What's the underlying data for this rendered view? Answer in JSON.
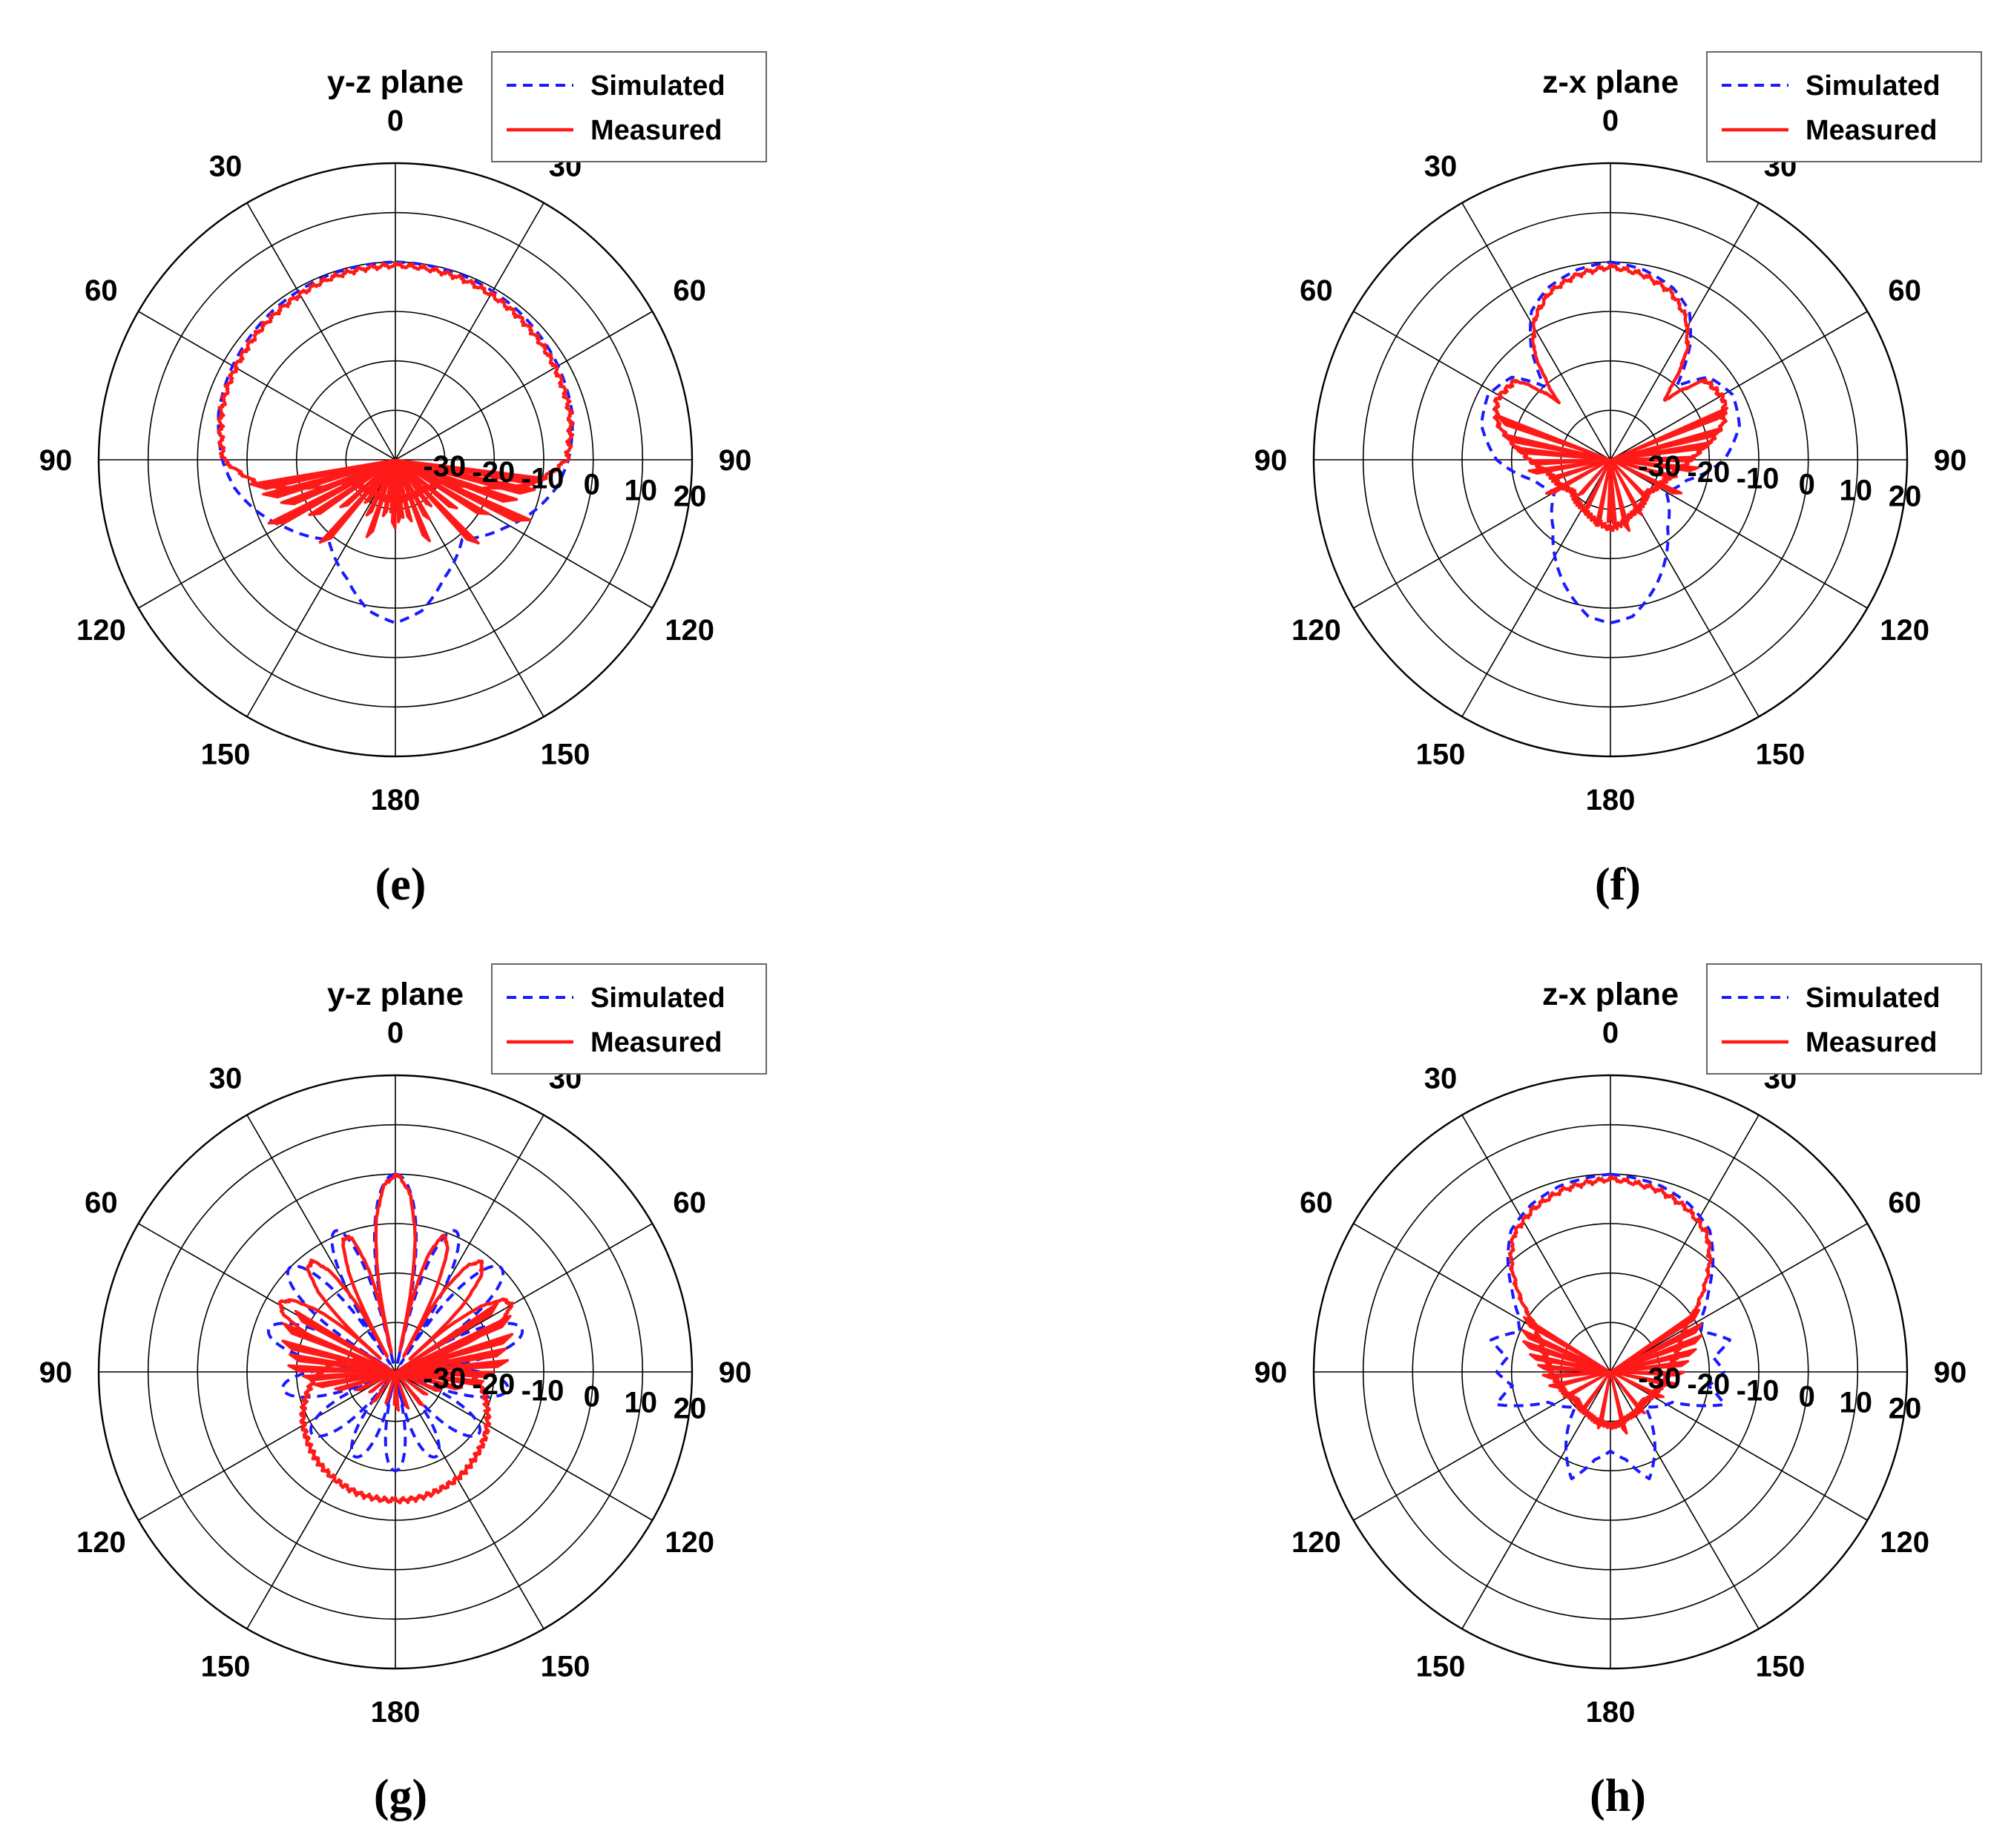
{
  "chart_data": [
    {
      "type": "polar",
      "panel": "e",
      "title": "y-z plane",
      "caption": "(e)",
      "theta_ticks": [
        "0",
        "30",
        "60",
        "90",
        "120",
        "150",
        "180",
        "150",
        "120",
        "90",
        "60",
        "30"
      ],
      "r_ticks": [
        "-30",
        "-20",
        "-10",
        "0",
        "10",
        "20"
      ],
      "rlim": [
        -40,
        20
      ],
      "units": "dB",
      "legend": [
        "Simulated",
        "Measured"
      ],
      "colors": {
        "simulated": "#1a1aff",
        "measured": "#ff1a1a"
      },
      "series": [
        {
          "name": "Simulated",
          "style": "dashed",
          "kind": "main",
          "profile": [
            [
              0,
              0
            ],
            [
              20,
              -0.3
            ],
            [
              40,
              -1
            ],
            [
              60,
              -2
            ],
            [
              75,
              -3
            ],
            [
              90,
              -5
            ],
            [
              100,
              -7
            ],
            [
              110,
              -10
            ],
            [
              122,
              -14
            ],
            [
              140,
              -19
            ],
            [
              158,
              -14
            ],
            [
              170,
              -9
            ],
            [
              180,
              -7
            ]
          ]
        },
        {
          "name": "Measured",
          "style": "solid",
          "kind": "main",
          "profile": [
            [
              0,
              -0.7
            ],
            [
              20,
              -1
            ],
            [
              40,
              -1.8
            ],
            [
              60,
              -2.7
            ],
            [
              75,
              -3.5
            ],
            [
              90,
              -5.3
            ],
            [
              100,
              -12
            ],
            [
              115,
              -30
            ],
            [
              140,
              -32
            ],
            [
              180,
              -32
            ]
          ],
          "spikes": [
            [
              97,
              -9
            ],
            [
              102,
              -11
            ],
            [
              108,
              -14
            ],
            [
              114,
              -10
            ],
            [
              120,
              -18
            ],
            [
              128,
              -24
            ],
            [
              135,
              -16
            ],
            [
              142,
              -28
            ],
            [
              150,
              -26
            ],
            [
              157,
              -22
            ],
            [
              165,
              -27
            ],
            [
              172,
              -28
            ],
            [
              180,
              -26
            ]
          ]
        }
      ]
    },
    {
      "type": "polar",
      "panel": "f",
      "title": "z-x plane",
      "caption": "(f)",
      "theta_ticks": [
        "0",
        "30",
        "60",
        "90",
        "120",
        "150",
        "180",
        "150",
        "120",
        "90",
        "60",
        "30"
      ],
      "r_ticks": [
        "-30",
        "-20",
        "-10",
        "0",
        "10",
        "20"
      ],
      "rlim": [
        -40,
        20
      ],
      "units": "dB",
      "legend": [
        "Simulated",
        "Measured"
      ],
      "colors": {
        "simulated": "#1a1aff",
        "measured": "#ff1a1a"
      },
      "series": [
        {
          "name": "Simulated",
          "style": "dashed",
          "kind": "main",
          "profile": [
            [
              0,
              0
            ],
            [
              10,
              -1
            ],
            [
              20,
              -3
            ],
            [
              28,
              -6
            ],
            [
              35,
              -12
            ],
            [
              42,
              -20
            ],
            [
              50,
              -14
            ],
            [
              62,
              -12
            ],
            [
              75,
              -13
            ],
            [
              90,
              -17
            ],
            [
              105,
              -24
            ],
            [
              120,
              -27
            ],
            [
              140,
              -22
            ],
            [
              160,
              -13
            ],
            [
              172,
              -8
            ],
            [
              180,
              -7
            ]
          ]
        },
        {
          "name": "Measured",
          "style": "solid",
          "kind": "main",
          "profile": [
            [
              0,
              -1
            ],
            [
              10,
              -2
            ],
            [
              20,
              -4
            ],
            [
              28,
              -7.5
            ],
            [
              35,
              -13
            ],
            [
              42,
              -24
            ],
            [
              50,
              -15
            ],
            [
              62,
              -14
            ],
            [
              72,
              -16
            ],
            [
              85,
              -22
            ],
            [
              100,
              -27
            ],
            [
              130,
              -30
            ],
            [
              160,
              -28
            ],
            [
              180,
              -26
            ]
          ],
          "spikes": [
            [
              66,
              -14
            ],
            [
              74,
              -17
            ],
            [
              80,
              -19
            ],
            [
              88,
              -23
            ],
            [
              95,
              -22
            ],
            [
              104,
              -26
            ],
            [
              115,
              -24
            ],
            [
              135,
              -29
            ],
            [
              150,
              -27
            ],
            [
              165,
              -25
            ],
            [
              175,
              -26
            ]
          ]
        }
      ]
    },
    {
      "type": "polar",
      "panel": "g",
      "title": "y-z plane",
      "caption": "(g)",
      "theta_ticks": [
        "0",
        "30",
        "60",
        "90",
        "120",
        "150",
        "180",
        "150",
        "120",
        "90",
        "60",
        "30"
      ],
      "r_ticks": [
        "-30",
        "-20",
        "-10",
        "0",
        "10",
        "20"
      ],
      "rlim": [
        -40,
        20
      ],
      "units": "dB",
      "legend": [
        "Simulated",
        "Measured"
      ],
      "colors": {
        "simulated": "#1a1aff",
        "measured": "#ff1a1a"
      },
      "series": [
        {
          "name": "Simulated",
          "style": "dashed",
          "kind": "lobes",
          "floor": -38,
          "nulls": [
            13,
            33,
            58,
            85,
            112,
            141,
            168
          ],
          "peaks": [
            0,
            -9,
            -10,
            -13,
            -17,
            -19,
            -21,
            -20
          ]
        },
        {
          "name": "Measured",
          "style": "solid",
          "kind": "lobes",
          "floor": -36,
          "nulls": [
            12,
            28,
            48,
            70
          ],
          "peaks": [
            -0.5,
            -11,
            -12,
            -13,
            -14
          ],
          "spikes": [
            [
              56,
              -15
            ],
            [
              64,
              -14
            ],
            [
              72,
              -15
            ],
            [
              78,
              -17
            ],
            [
              84,
              -17
            ],
            [
              90,
              -20
            ],
            [
              96,
              -22
            ],
            [
              103,
              -26
            ],
            [
              112,
              -30
            ],
            [
              125,
              -32
            ],
            [
              140,
              -31
            ],
            [
              160,
              -32
            ],
            [
              175,
              -32
            ]
          ]
        }
      ]
    },
    {
      "type": "polar",
      "panel": "h",
      "title": "z-x plane",
      "caption": "(h)",
      "theta_ticks": [
        "0",
        "30",
        "60",
        "90",
        "120",
        "150",
        "180",
        "150",
        "120",
        "90",
        "60",
        "30"
      ],
      "r_ticks": [
        "-30",
        "-20",
        "-10",
        "0",
        "10",
        "20"
      ],
      "rlim": [
        -40,
        20
      ],
      "units": "dB",
      "legend": [
        "Simulated",
        "Measured"
      ],
      "colors": {
        "simulated": "#1a1aff",
        "measured": "#ff1a1a"
      },
      "series": [
        {
          "name": "Simulated",
          "style": "dashed",
          "kind": "main",
          "profile": [
            [
              0,
              0
            ],
            [
              15,
              -1
            ],
            [
              25,
              -2.5
            ],
            [
              35,
              -5
            ],
            [
              42,
              -9
            ],
            [
              50,
              -14
            ],
            [
              58,
              -18
            ],
            [
              66,
              -20
            ],
            [
              75,
              -15
            ],
            [
              82,
              -19
            ],
            [
              90,
              -17
            ],
            [
              98,
              -20
            ],
            [
              106,
              -16
            ],
            [
              116,
              -26
            ],
            [
              135,
              -30
            ],
            [
              150,
              -22
            ],
            [
              160,
              -17
            ],
            [
              170,
              -22
            ],
            [
              180,
              -24
            ]
          ]
        },
        {
          "name": "Measured",
          "style": "solid",
          "kind": "main",
          "profile": [
            [
              0,
              -1
            ],
            [
              15,
              -2
            ],
            [
              25,
              -3.5
            ],
            [
              35,
              -6
            ],
            [
              42,
              -10
            ],
            [
              50,
              -16
            ],
            [
              58,
              -22
            ],
            [
              68,
              -25
            ],
            [
              80,
              -27
            ],
            [
              100,
              -29
            ],
            [
              130,
              -31
            ],
            [
              160,
              -30
            ],
            [
              180,
              -29
            ]
          ],
          "spikes": [
            [
              55,
              -18
            ],
            [
              62,
              -19
            ],
            [
              68,
              -20
            ],
            [
              75,
              -22
            ],
            [
              82,
              -24
            ],
            [
              90,
              -25
            ],
            [
              100,
              -26
            ],
            [
              115,
              -28
            ],
            [
              140,
              -29
            ],
            [
              165,
              -27
            ]
          ]
        }
      ]
    }
  ]
}
